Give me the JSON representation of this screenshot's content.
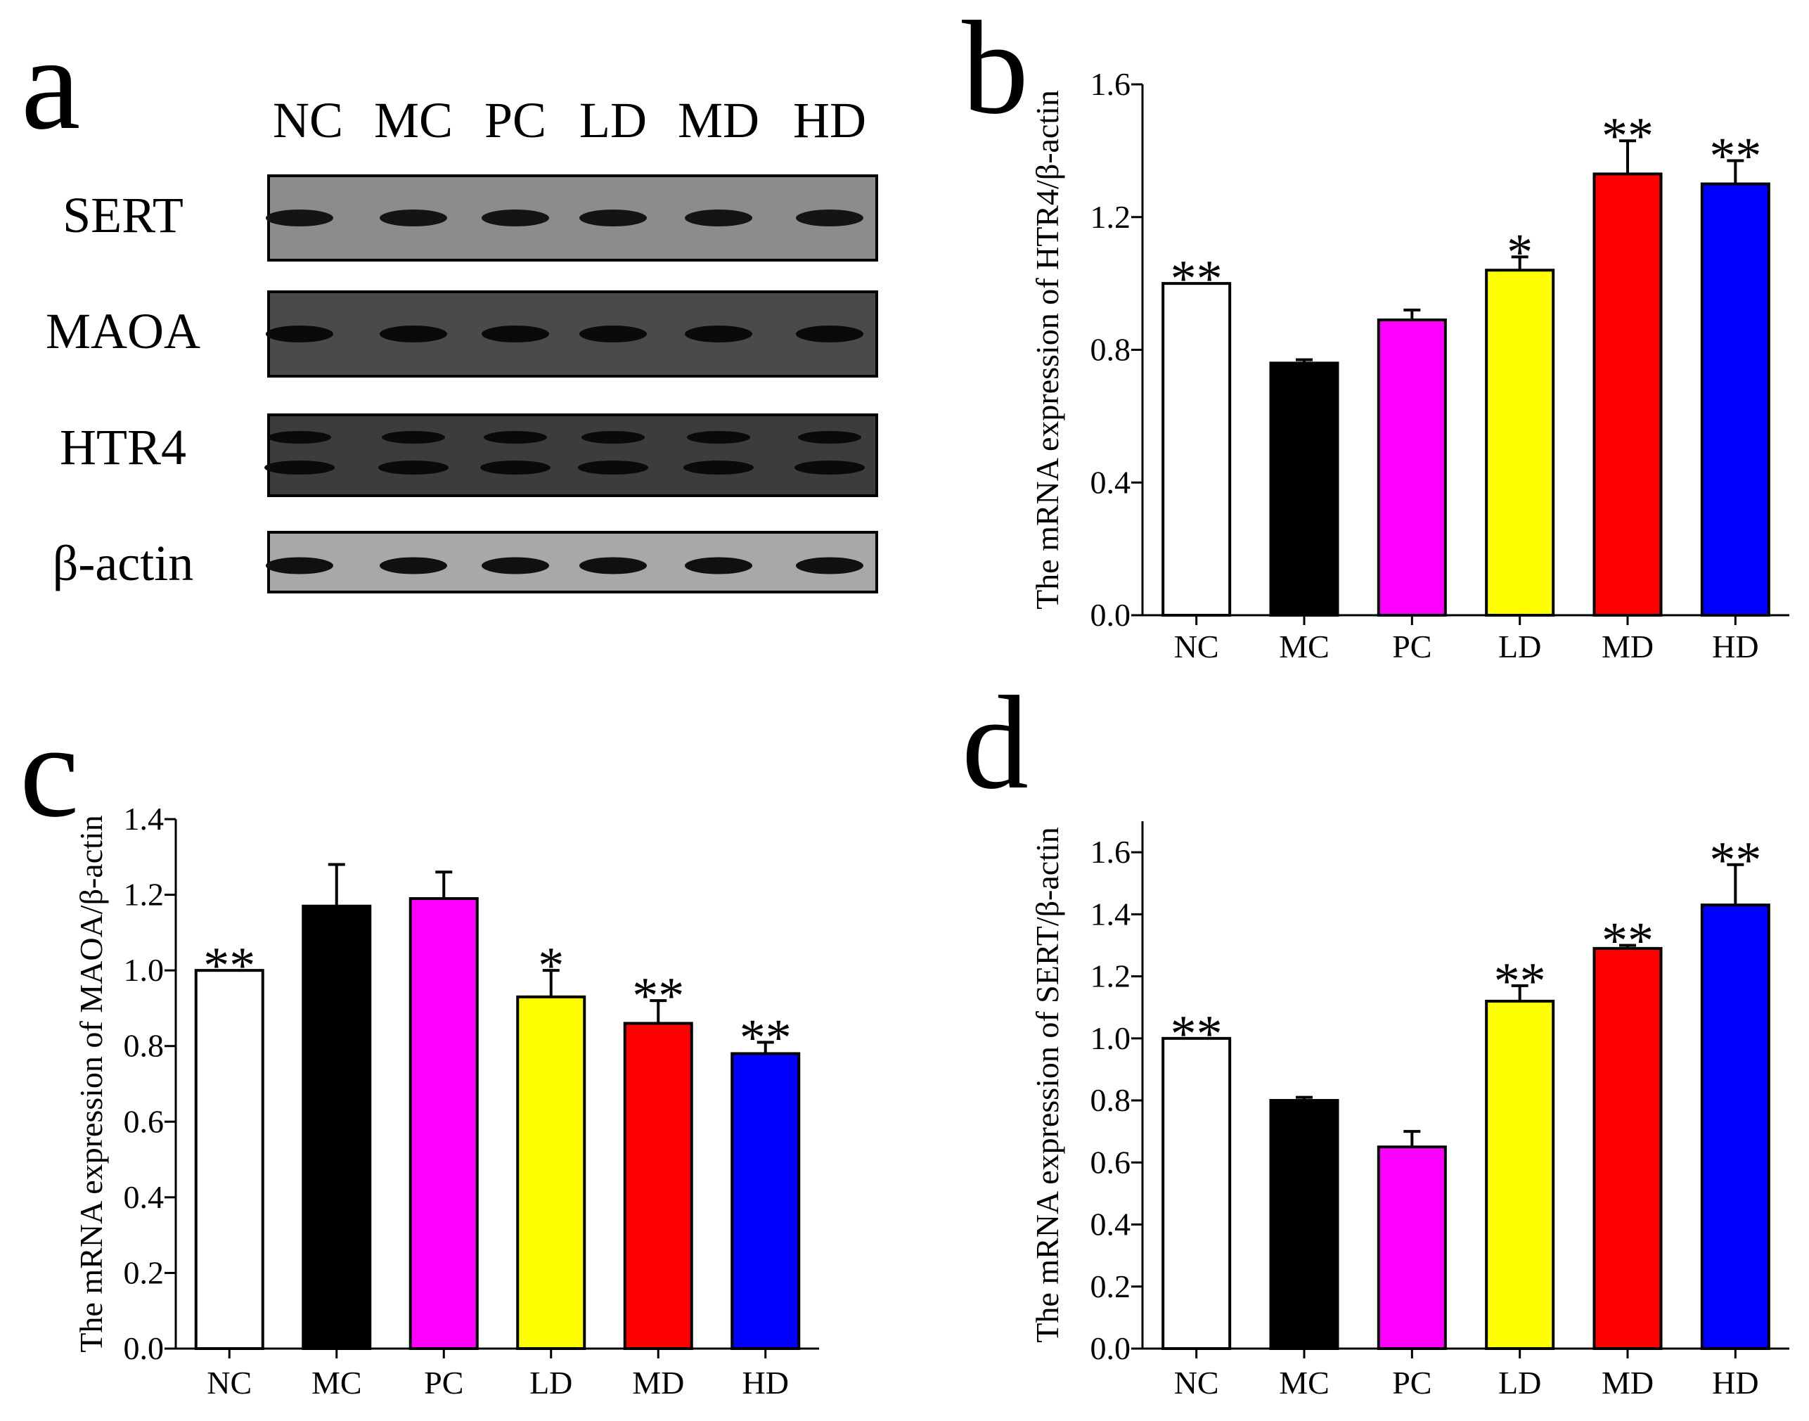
{
  "figure": {
    "panel_labels": {
      "a": "a",
      "b": "b",
      "c": "c",
      "d": "d"
    }
  },
  "western_blot": {
    "lanes": [
      "NC",
      "MC",
      "PC",
      "LD",
      "MD",
      "HD"
    ],
    "rows": [
      {
        "label": "SERT",
        "bands": 1,
        "blot_shade": "#8c8c8c",
        "band_color": "#141414"
      },
      {
        "label": "MAOA",
        "bands": 1,
        "blot_shade": "#4a4a4a",
        "band_color": "#0a0a0a"
      },
      {
        "label": "HTR4",
        "bands": 2,
        "blot_shade": "#3c3c3c",
        "band_color": "#0a0a0a"
      },
      {
        "label": "β-actin",
        "bands": 1,
        "blot_shade": "#a8a8a8",
        "band_color": "#101010"
      }
    ]
  },
  "chart_data": [
    {
      "id": "b",
      "type": "bar",
      "categories": [
        "NC",
        "MC",
        "PC",
        "LD",
        "MD",
        "HD"
      ],
      "values": [
        1.0,
        0.76,
        0.89,
        1.04,
        1.33,
        1.3
      ],
      "errors": [
        0.0,
        0.01,
        0.03,
        0.04,
        0.1,
        0.07
      ],
      "significance": [
        "**",
        "",
        "",
        "*",
        "**",
        "**"
      ],
      "colors": [
        "#ffffff",
        "#000000",
        "#ff00ff",
        "#ffff00",
        "#ff0000",
        "#0000ff"
      ],
      "ylabel": "The mRNA expression of HTR4/β-actin",
      "xlabel": "",
      "ylim": [
        0,
        1.6
      ],
      "yticks": [
        0.0,
        0.4,
        0.8,
        1.2,
        1.6
      ],
      "ytick_labels": [
        "0.0",
        "0.4",
        "0.8",
        "1.2",
        "1.6"
      ],
      "grid": false
    },
    {
      "id": "c",
      "type": "bar",
      "categories": [
        "NC",
        "MC",
        "PC",
        "LD",
        "MD",
        "HD"
      ],
      "values": [
        1.0,
        1.17,
        1.19,
        0.93,
        0.86,
        0.78
      ],
      "errors": [
        0.0,
        0.11,
        0.07,
        0.07,
        0.06,
        0.03
      ],
      "significance": [
        "**",
        "",
        "",
        "*",
        "**",
        "**"
      ],
      "colors": [
        "#ffffff",
        "#000000",
        "#ff00ff",
        "#ffff00",
        "#ff0000",
        "#0000ff"
      ],
      "ylabel": "The mRNA expression of MAOA/β-actin",
      "xlabel": "",
      "ylim": [
        0,
        1.4
      ],
      "yticks": [
        0.0,
        0.2,
        0.4,
        0.6,
        0.8,
        1.0,
        1.2,
        1.4
      ],
      "ytick_labels": [
        "0.0",
        "0.2",
        "0.4",
        "0.6",
        "0.8",
        "1.0",
        "1.2",
        "1.4"
      ],
      "grid": false
    },
    {
      "id": "d",
      "type": "bar",
      "categories": [
        "NC",
        "MC",
        "PC",
        "LD",
        "MD",
        "HD"
      ],
      "values": [
        1.0,
        0.8,
        0.65,
        1.12,
        1.29,
        1.43
      ],
      "errors": [
        0.0,
        0.01,
        0.05,
        0.05,
        0.01,
        0.13
      ],
      "significance": [
        "**",
        "",
        "",
        "**",
        "**",
        "**"
      ],
      "colors": [
        "#ffffff",
        "#000000",
        "#ff00ff",
        "#ffff00",
        "#ff0000",
        "#0000ff"
      ],
      "ylabel": "The mRNA expression of SERT/β-actin",
      "xlabel": "",
      "ylim": [
        0,
        1.7
      ],
      "yticks": [
        0.0,
        0.2,
        0.4,
        0.6,
        0.8,
        1.0,
        1.2,
        1.4,
        1.6
      ],
      "ytick_labels": [
        "0.0",
        "0.2",
        "0.4",
        "0.6",
        "0.8",
        "1.0",
        "1.2",
        "1.4",
        "1.6"
      ],
      "grid": false
    }
  ]
}
